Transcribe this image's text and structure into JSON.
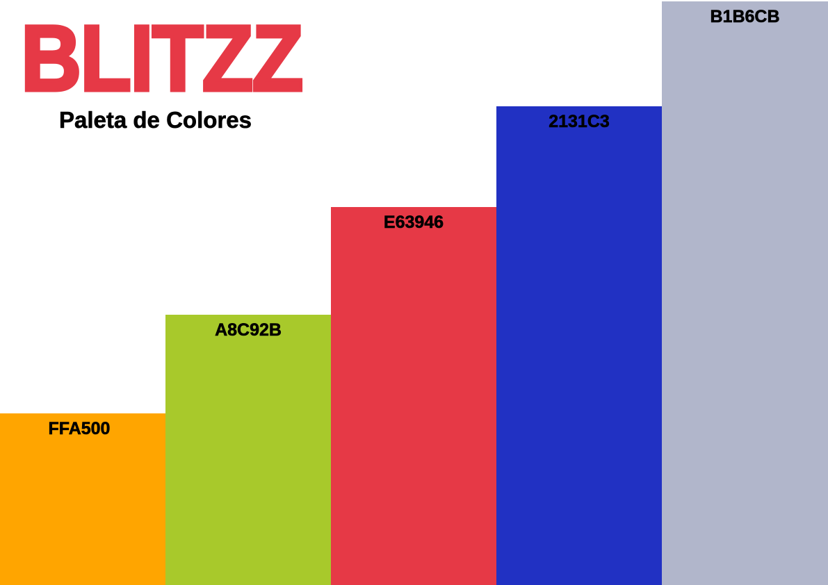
{
  "logo": {
    "text": "BLITZZ",
    "color": "#E63946"
  },
  "subtitle": "Paleta de Colores",
  "swatches": [
    {
      "code": "FFA500",
      "color": "#FFA500"
    },
    {
      "code": "A8C92B",
      "color": "#A8C92B"
    },
    {
      "code": "E63946",
      "color": "#E63946"
    },
    {
      "code": "2131C3",
      "color": "#2131C3"
    },
    {
      "code": "B1B6CB",
      "color": "#B1B6CB"
    }
  ]
}
